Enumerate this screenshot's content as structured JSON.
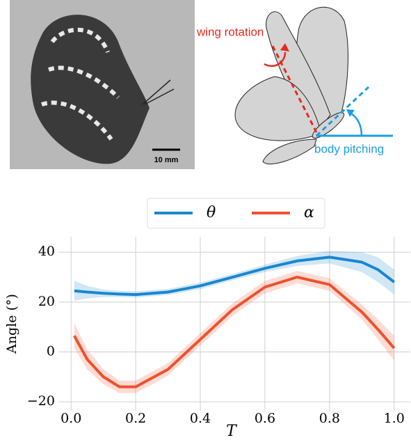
{
  "figure": {
    "photo_scale_label": "10 mm",
    "wing_rotation_label": "wing rotation",
    "body_pitching_label": "body pitching"
  },
  "chart_data": {
    "type": "line",
    "x_label": "T",
    "y_label": "Angle (°)",
    "x": [
      0.01,
      0.05,
      0.1,
      0.15,
      0.2,
      0.3,
      0.4,
      0.5,
      0.6,
      0.7,
      0.8,
      0.9,
      0.95,
      1.0
    ],
    "series": [
      {
        "name": "θ",
        "color": "#1a86d0",
        "values": [
          24.5,
          24,
          23.5,
          23.2,
          23,
          24,
          26.5,
          30,
          33.5,
          36.5,
          38,
          36,
          33,
          28
        ],
        "band_lower": [
          20.5,
          21.5,
          22,
          22,
          21.8,
          22.8,
          25.2,
          28.7,
          32,
          34.5,
          35.5,
          32,
          28,
          23
        ],
        "band_upper": [
          28.5,
          26.5,
          25,
          24.5,
          24.3,
          25.3,
          27.8,
          31.3,
          35,
          38.5,
          40.5,
          40,
          38,
          33
        ]
      },
      {
        "name": "α",
        "color": "#f0502d",
        "values": [
          6.5,
          -3,
          -10,
          -14,
          -14,
          -7,
          5,
          17,
          26,
          30,
          27,
          16,
          9,
          1.5
        ],
        "band_lower": [
          1.5,
          -7,
          -13,
          -16.5,
          -16.5,
          -9.5,
          2.5,
          14.5,
          23.5,
          27.5,
          24.5,
          13,
          5,
          -3.5
        ],
        "band_upper": [
          11.5,
          1,
          -7,
          -11.5,
          -11.5,
          -4.5,
          7.5,
          19.5,
          28.5,
          32.5,
          29.5,
          19,
          13,
          6.5
        ]
      }
    ],
    "xlim": [
      -0.037,
      1.05
    ],
    "ylim": [
      -23.6,
      46.2
    ],
    "xticks": [
      {
        "value": 0,
        "label": "0.0"
      },
      0.2,
      0.4,
      0.6,
      0.8,
      {
        "value": 1,
        "label": "1.0"
      }
    ],
    "yticks": [
      {
        "value": -20,
        "label": "−20"
      },
      0,
      20,
      40
    ],
    "grid": true,
    "legend": "top"
  }
}
